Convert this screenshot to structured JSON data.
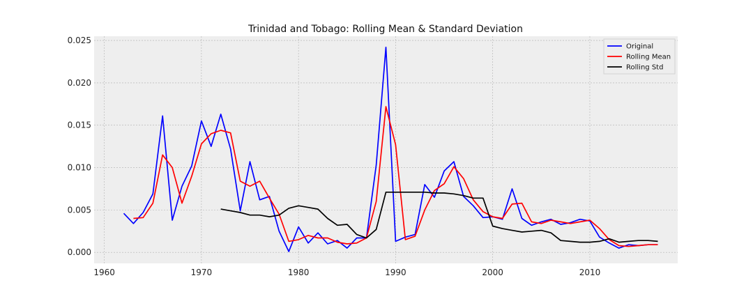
{
  "chart_data": {
    "type": "line",
    "title": "Trinidad and Tobago: Rolling Mean & Standard Deviation",
    "xlabel": "",
    "ylabel": "",
    "xlim": [
      1958.95,
      2019.05
    ],
    "ylim": [
      -0.0013,
      0.0255
    ],
    "xticks": [
      1960,
      1970,
      1980,
      1990,
      2000,
      2010
    ],
    "xtick_labels": [
      "1960",
      "1970",
      "1980",
      "1990",
      "2000",
      "2010"
    ],
    "yticks": [
      0.0,
      0.005,
      0.01,
      0.015,
      0.02,
      0.025
    ],
    "ytick_labels": [
      "0.000",
      "0.005",
      "0.010",
      "0.015",
      "0.020",
      "0.025"
    ],
    "grid": true,
    "legend_position": "top-right",
    "colors": {
      "background": "#eeeeee",
      "grid": "#b0b0b0"
    },
    "series": [
      {
        "name": "Original",
        "color": "#0000ff",
        "x": [
          1962,
          1963,
          1964,
          1965,
          1966,
          1967,
          1968,
          1969,
          1970,
          1971,
          1972,
          1973,
          1974,
          1975,
          1976,
          1977,
          1978,
          1979,
          1980,
          1981,
          1982,
          1983,
          1984,
          1985,
          1986,
          1987,
          1988,
          1989,
          1990,
          1991,
          1992,
          1993,
          1994,
          1995,
          1996,
          1997,
          1998,
          1999,
          2000,
          2001,
          2002,
          2003,
          2004,
          2005,
          2006,
          2007,
          2008,
          2009,
          2010,
          2011,
          2012,
          2013,
          2014,
          2015,
          2016,
          2017
        ],
        "values": [
          0.0046,
          0.0034,
          0.0047,
          0.0069,
          0.0161,
          0.0038,
          0.0078,
          0.0102,
          0.0155,
          0.0125,
          0.0163,
          0.0122,
          0.0049,
          0.0107,
          0.0062,
          0.0066,
          0.0025,
          0.0001,
          0.003,
          0.0011,
          0.0023,
          0.001,
          0.0014,
          0.0005,
          0.0017,
          0.0017,
          0.0103,
          0.0242,
          0.0013,
          0.0018,
          0.0021,
          0.008,
          0.0065,
          0.0096,
          0.0107,
          0.0066,
          0.0055,
          0.0041,
          0.0042,
          0.0039,
          0.0075,
          0.004,
          0.0032,
          0.0036,
          0.0039,
          0.0033,
          0.0035,
          0.0039,
          0.0037,
          0.0018,
          0.0011,
          0.0005,
          0.0009,
          0.0008,
          0.0009,
          0.0009
        ]
      },
      {
        "name": "Rolling Mean",
        "color": "#ff0000",
        "x": [
          1963,
          1964,
          1965,
          1966,
          1967,
          1968,
          1969,
          1970,
          1971,
          1972,
          1973,
          1974,
          1975,
          1976,
          1977,
          1978,
          1979,
          1980,
          1981,
          1982,
          1983,
          1984,
          1985,
          1986,
          1987,
          1988,
          1989,
          1990,
          1991,
          1992,
          1993,
          1994,
          1995,
          1996,
          1997,
          1998,
          1999,
          2000,
          2001,
          2002,
          2003,
          2004,
          2005,
          2006,
          2007,
          2008,
          2009,
          2010,
          2011,
          2012,
          2013,
          2014,
          2015,
          2016,
          2017
        ],
        "values": [
          0.004,
          0.0041,
          0.0058,
          0.0115,
          0.01,
          0.0058,
          0.009,
          0.0128,
          0.014,
          0.0144,
          0.0141,
          0.0084,
          0.0078,
          0.0084,
          0.0064,
          0.0045,
          0.0013,
          0.0015,
          0.002,
          0.0017,
          0.0017,
          0.0012,
          0.001,
          0.0011,
          0.0017,
          0.006,
          0.0172,
          0.0127,
          0.0015,
          0.0019,
          0.005,
          0.0073,
          0.0081,
          0.0101,
          0.0087,
          0.0062,
          0.0048,
          0.0042,
          0.004,
          0.0057,
          0.0058,
          0.0036,
          0.0034,
          0.0038,
          0.0036,
          0.0034,
          0.0036,
          0.0038,
          0.0028,
          0.0015,
          0.0008,
          0.0007,
          0.0008,
          0.0009,
          0.0009
        ]
      },
      {
        "name": "Rolling Std",
        "color": "#000000",
        "x": [
          1972,
          1973,
          1974,
          1975,
          1976,
          1977,
          1978,
          1979,
          1980,
          1981,
          1982,
          1983,
          1984,
          1985,
          1986,
          1987,
          1988,
          1989,
          1990,
          1991,
          1992,
          1993,
          1994,
          1995,
          1996,
          1997,
          1998,
          1999,
          2000,
          2001,
          2002,
          2003,
          2004,
          2005,
          2006,
          2007,
          2008,
          2009,
          2010,
          2011,
          2012,
          2013,
          2014,
          2015,
          2016,
          2017
        ],
        "values": [
          0.0051,
          0.0049,
          0.0047,
          0.0044,
          0.0044,
          0.0042,
          0.0044,
          0.0052,
          0.0055,
          0.0053,
          0.0051,
          0.004,
          0.0032,
          0.0033,
          0.0021,
          0.0017,
          0.0027,
          0.0071,
          0.0071,
          0.0071,
          0.0071,
          0.0071,
          0.007,
          0.007,
          0.0069,
          0.0067,
          0.0064,
          0.0064,
          0.0031,
          0.0028,
          0.0026,
          0.0024,
          0.0025,
          0.0026,
          0.0023,
          0.0014,
          0.0013,
          0.0012,
          0.0012,
          0.0013,
          0.0016,
          0.0012,
          0.0013,
          0.0014,
          0.0014,
          0.0013
        ]
      }
    ]
  }
}
